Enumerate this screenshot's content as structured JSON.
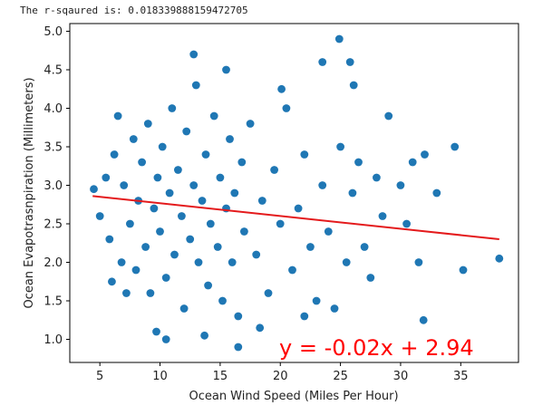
{
  "output": {
    "r_squared_text": "The r-sqaured is: 0.018339888159472705"
  },
  "colors": {
    "points": "#1f77b4",
    "regression_line": "#e41a1c",
    "equation_text": "#ff0000",
    "axes": "#000000"
  },
  "chart_data": {
    "type": "scatter",
    "xlabel": "Ocean Wind Speed (Miles Per Hour)",
    "ylabel": "Ocean Evapotrasnpiration (Millimeters)",
    "xlim": [
      2.5,
      39.8
    ],
    "ylim": [
      0.7,
      5.1
    ],
    "x_ticks": [
      5,
      10,
      15,
      20,
      25,
      30,
      35
    ],
    "y_ticks": [
      1.0,
      1.5,
      2.0,
      2.5,
      3.0,
      3.5,
      4.0,
      4.5,
      5.0
    ],
    "grid": false,
    "regression": {
      "slope": -0.02,
      "intercept": 2.94,
      "x_range": [
        4.4,
        38.2
      ],
      "y_at_range": [
        2.86,
        2.3
      ],
      "equation_text": "y = -0.02x + 2.94"
    },
    "points": [
      [
        4.5,
        2.95
      ],
      [
        5.0,
        2.6
      ],
      [
        5.5,
        3.1
      ],
      [
        5.8,
        2.3
      ],
      [
        6.2,
        3.4
      ],
      [
        6.0,
        1.75
      ],
      [
        6.8,
        2.0
      ],
      [
        7.0,
        3.0
      ],
      [
        7.5,
        2.5
      ],
      [
        7.8,
        3.6
      ],
      [
        8.0,
        1.9
      ],
      [
        8.2,
        2.8
      ],
      [
        8.5,
        3.3
      ],
      [
        8.8,
        2.2
      ],
      [
        9.0,
        3.8
      ],
      [
        9.2,
        1.6
      ],
      [
        9.5,
        2.7
      ],
      [
        9.8,
        3.1
      ],
      [
        10.0,
        2.4
      ],
      [
        10.2,
        3.5
      ],
      [
        10.5,
        1.8
      ],
      [
        10.8,
        2.9
      ],
      [
        11.0,
        4.0
      ],
      [
        11.2,
        2.1
      ],
      [
        11.5,
        3.2
      ],
      [
        11.8,
        2.6
      ],
      [
        12.0,
        1.4
      ],
      [
        12.2,
        3.7
      ],
      [
        12.5,
        2.3
      ],
      [
        12.8,
        3.0
      ],
      [
        13.0,
        4.3
      ],
      [
        13.2,
        2.0
      ],
      [
        13.5,
        2.8
      ],
      [
        13.8,
        3.4
      ],
      [
        14.0,
        1.7
      ],
      [
        14.2,
        2.5
      ],
      [
        14.5,
        3.9
      ],
      [
        14.8,
        2.2
      ],
      [
        15.0,
        3.1
      ],
      [
        15.2,
        1.5
      ],
      [
        15.5,
        2.7
      ],
      [
        15.8,
        3.6
      ],
      [
        16.0,
        2.0
      ],
      [
        16.2,
        2.9
      ],
      [
        16.5,
        1.3
      ],
      [
        16.8,
        3.3
      ],
      [
        17.0,
        2.4
      ],
      [
        17.5,
        3.8
      ],
      [
        18.0,
        2.1
      ],
      [
        18.5,
        2.8
      ],
      [
        19.0,
        1.6
      ],
      [
        19.5,
        3.2
      ],
      [
        20.0,
        2.5
      ],
      [
        20.5,
        4.0
      ],
      [
        21.0,
        1.9
      ],
      [
        21.5,
        2.7
      ],
      [
        22.0,
        3.4
      ],
      [
        22.5,
        2.2
      ],
      [
        23.0,
        1.5
      ],
      [
        23.5,
        3.0
      ],
      [
        24.0,
        2.4
      ],
      [
        24.5,
        1.4
      ],
      [
        25.0,
        3.5
      ],
      [
        25.5,
        2.0
      ],
      [
        26.0,
        2.9
      ],
      [
        26.5,
        3.3
      ],
      [
        27.0,
        2.2
      ],
      [
        27.5,
        1.8
      ],
      [
        28.0,
        3.1
      ],
      [
        28.5,
        2.6
      ],
      [
        29.0,
        3.9
      ],
      [
        30.0,
        3.0
      ],
      [
        30.5,
        2.5
      ],
      [
        31.0,
        3.3
      ],
      [
        31.5,
        2.0
      ],
      [
        32.0,
        3.4
      ],
      [
        33.0,
        2.9
      ],
      [
        34.5,
        3.5
      ],
      [
        35.2,
        1.9
      ],
      [
        38.2,
        2.05
      ],
      [
        6.5,
        3.9
      ],
      [
        7.2,
        1.6
      ],
      [
        9.7,
        1.1
      ],
      [
        10.5,
        1.0
      ],
      [
        12.8,
        4.7
      ],
      [
        15.5,
        4.5
      ],
      [
        16.5,
        0.9
      ],
      [
        22.0,
        1.3
      ],
      [
        23.5,
        4.6
      ],
      [
        24.9,
        4.9
      ],
      [
        25.8,
        4.6
      ],
      [
        26.1,
        4.3
      ],
      [
        31.9,
        1.25
      ],
      [
        20.1,
        4.25
      ],
      [
        18.3,
        1.15
      ],
      [
        13.7,
        1.05
      ]
    ]
  }
}
